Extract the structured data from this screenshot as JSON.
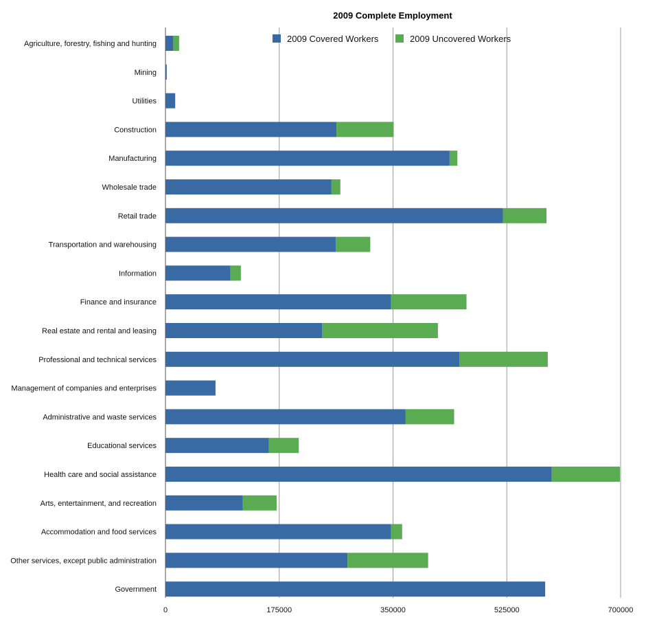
{
  "chart_data": {
    "type": "bar",
    "orientation": "horizontal",
    "stacked": true,
    "title": "2009 Complete Employment",
    "xlabel": "",
    "ylabel": "",
    "xlim": [
      0,
      700000
    ],
    "ticks": [
      "0",
      "175000",
      "350000",
      "525000",
      "700000"
    ],
    "tick_values": [
      0,
      175000,
      350000,
      525000,
      700000
    ],
    "grid": true,
    "legend_position": "top",
    "categories": [
      "Agriculture, forestry, fishing and hunting",
      "Mining",
      "Utilities",
      "Construction",
      "Manufacturing",
      "Wholesale trade",
      "Retail trade",
      "Transportation and warehousing",
      "Information",
      "Finance and insurance",
      "Real estate and rental and leasing",
      "Professional and technical services",
      "Management of companies and enterprises",
      "Administrative and waste services",
      "Educational services",
      "Health care and social assistance",
      "Arts, entertainment, and recreation",
      "Accommodation and food services",
      "Other services, except public administration",
      "Government"
    ],
    "series": [
      {
        "name": "2009 Covered Workers",
        "color": "#3a6aa4",
        "values": [
          12000,
          2000,
          15000,
          263000,
          437000,
          255000,
          519000,
          262000,
          100000,
          347000,
          241000,
          452000,
          77000,
          369000,
          159000,
          594000,
          119000,
          347000,
          280000,
          584000
        ]
      },
      {
        "name": "2009 Uncovered Workers",
        "color": "#5aab51",
        "values": [
          9000,
          0,
          0,
          88000,
          12000,
          14000,
          67000,
          53000,
          16000,
          116000,
          178000,
          136000,
          0,
          75000,
          46000,
          105000,
          52000,
          17000,
          124000,
          0
        ]
      }
    ]
  }
}
